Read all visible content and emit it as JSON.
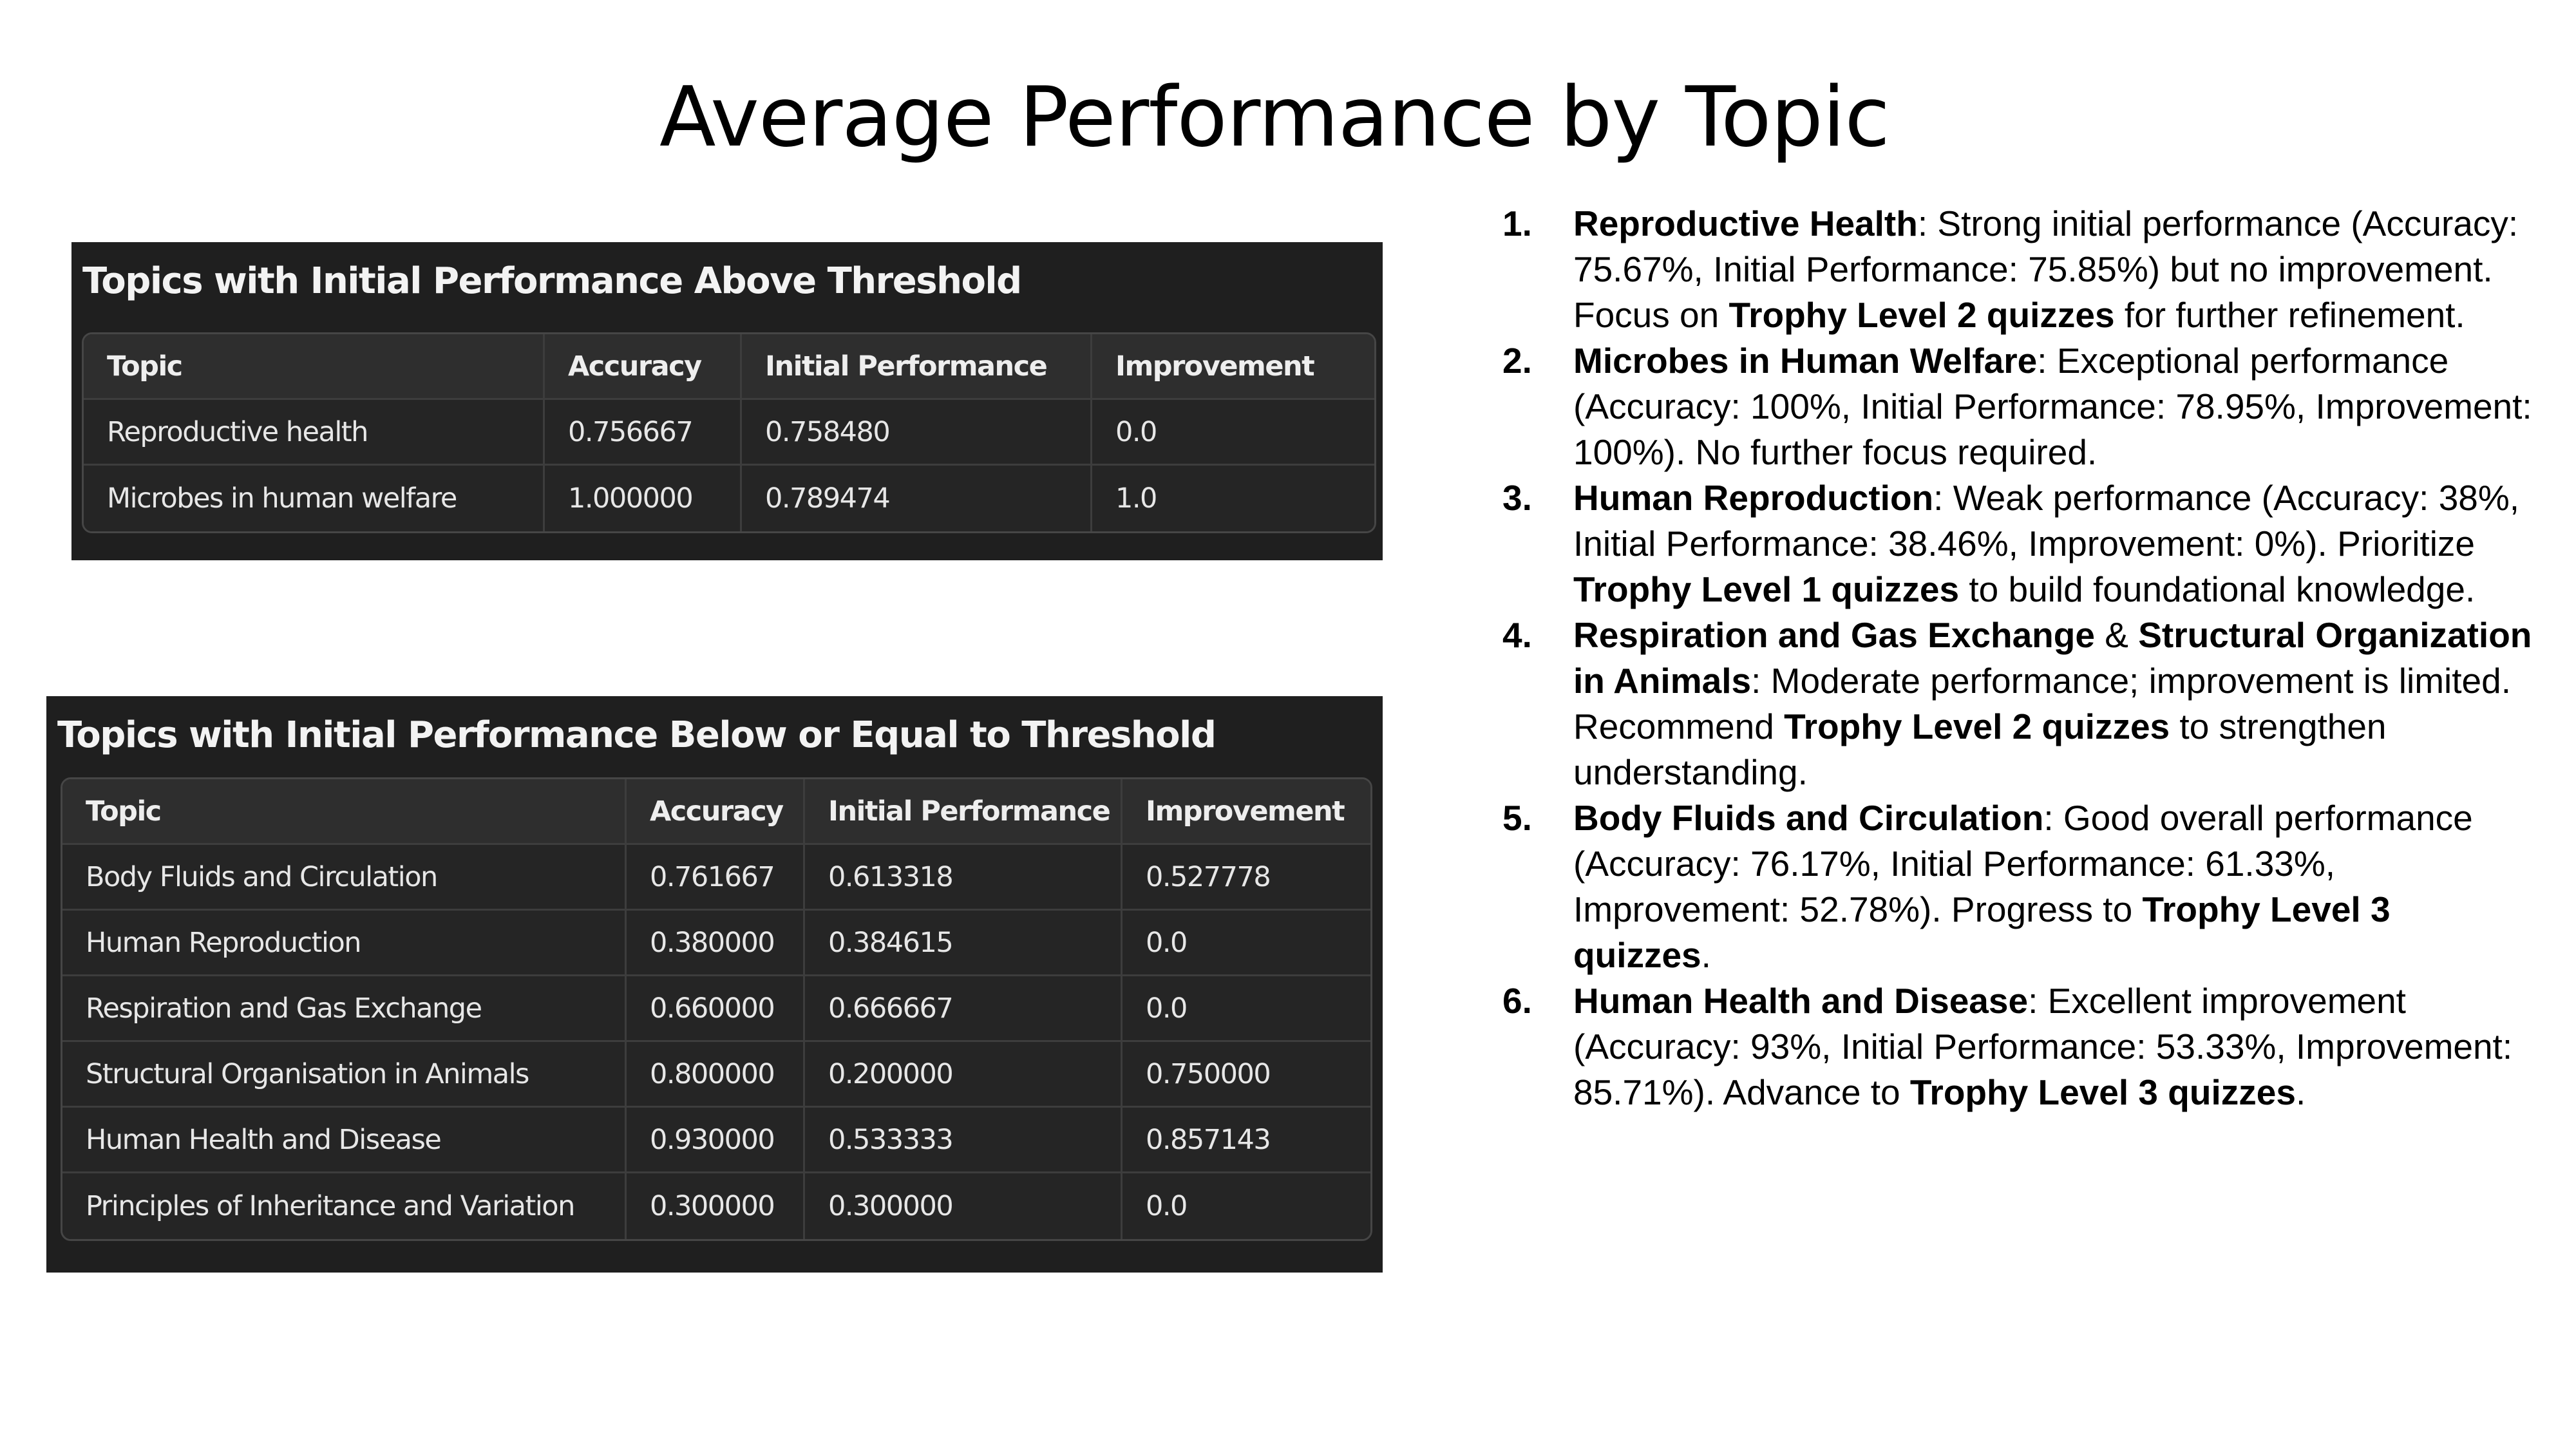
{
  "title": "Average Performance by Topic",
  "table_above": {
    "title": "Topics with Initial Performance Above Threshold",
    "columns": [
      "Topic",
      "Accuracy",
      "Initial Performance",
      "Improvement"
    ],
    "rows": [
      [
        "Reproductive health",
        "0.756667",
        "0.758480",
        "0.0"
      ],
      [
        "Microbes in human welfare",
        "1.000000",
        "0.789474",
        "1.0"
      ]
    ]
  },
  "table_below": {
    "title": "Topics with Initial Performance Below or Equal to Threshold",
    "columns": [
      "Topic",
      "Accuracy",
      "Initial Performance",
      "Improvement"
    ],
    "rows": [
      [
        "Body Fluids and Circulation",
        "0.761667",
        "0.613318",
        "0.527778"
      ],
      [
        "Human Reproduction",
        "0.380000",
        "0.384615",
        "0.0"
      ],
      [
        "Respiration and Gas Exchange",
        "0.660000",
        "0.666667",
        "0.0"
      ],
      [
        "Structural Organisation in Animals",
        "0.800000",
        "0.200000",
        "0.750000"
      ],
      [
        "Human Health and Disease",
        "0.930000",
        "0.533333",
        "0.857143"
      ],
      [
        "Principles of Inheritance and Variation",
        "0.300000",
        "0.300000",
        "0.0"
      ]
    ]
  },
  "notes": [
    {
      "number": "1.",
      "parts": [
        {
          "text": "Reproductive Health",
          "bold": true
        },
        {
          "text": ": Strong initial performance (Accuracy: 75.67%, Initial Performance: 75.85%) but no improvement. Focus on ",
          "bold": false
        },
        {
          "text": "Trophy Level 2 quizzes",
          "bold": true
        },
        {
          "text": " for further refinement.",
          "bold": false
        }
      ]
    },
    {
      "number": "2.",
      "parts": [
        {
          "text": "Microbes in Human Welfare",
          "bold": true
        },
        {
          "text": ": Exceptional performance (Accuracy: 100%, Initial Performance: 78.95%, Improvement: 100%). No further focus required.",
          "bold": false
        }
      ]
    },
    {
      "number": "3.",
      "parts": [
        {
          "text": "Human Reproduction",
          "bold": true
        },
        {
          "text": ": Weak performance (Accuracy: 38%, Initial Performance: 38.46%, Improvement: 0%). Prioritize ",
          "bold": false
        },
        {
          "text": "Trophy Level 1 quizzes",
          "bold": true
        },
        {
          "text": " to build foundational knowledge.",
          "bold": false
        }
      ]
    },
    {
      "number": "4.",
      "parts": [
        {
          "text": "Respiration and Gas Exchange",
          "bold": true
        },
        {
          "text": " & ",
          "bold": false
        },
        {
          "text": "Structural Organization in Animals",
          "bold": true
        },
        {
          "text": ": Moderate performance; improvement is limited. Recommend ",
          "bold": false
        },
        {
          "text": "Trophy Level 2 quizzes",
          "bold": true
        },
        {
          "text": " to strengthen understanding.",
          "bold": false
        }
      ]
    },
    {
      "number": "5.",
      "parts": [
        {
          "text": "Body Fluids and Circulation",
          "bold": true
        },
        {
          "text": ": Good overall performance (Accuracy: 76.17%, Initial Performance: 61.33%, Improvement: 52.78%). Progress to ",
          "bold": false
        },
        {
          "text": "Trophy Level 3 quizzes",
          "bold": true
        },
        {
          "text": ".",
          "bold": false
        }
      ]
    },
    {
      "number": "6.",
      "parts": [
        {
          "text": "Human Health and Disease",
          "bold": true
        },
        {
          "text": ": Excellent improvement (Accuracy: 93%, Initial Performance: 53.33%, Improvement: 85.71%). Advance to ",
          "bold": false
        },
        {
          "text": "Trophy Level 3 quizzes",
          "bold": true
        },
        {
          "text": ".",
          "bold": false
        }
      ]
    }
  ]
}
